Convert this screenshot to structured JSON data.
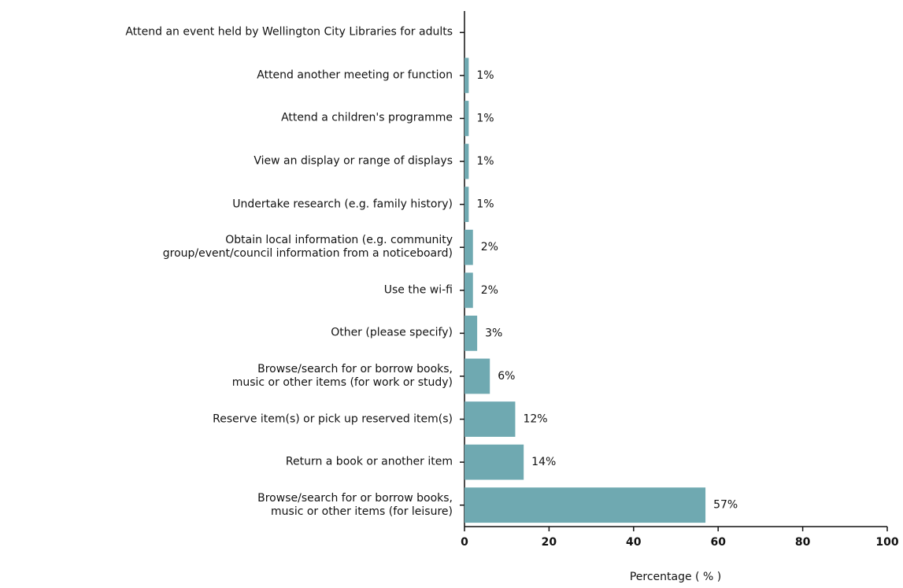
{
  "chart_data": {
    "type": "hbar",
    "categories": [
      "Attend an event held by Wellington City Libraries for adults",
      "Attend another meeting or function",
      "Attend a children's programme",
      "View an display or range of displays",
      "Undertake research (e.g. family history)",
      "Obtain local information (e.g. community\ngroup/event/council information from a noticeboard)",
      "Use the wi-fi",
      "Other (please specify)",
      "Browse/search for or borrow books,\nmusic or other items (for work or study)",
      "Reserve item(s) or pick up reserved item(s)",
      "Return a book or another item",
      "Browse/search for or borrow books,\nmusic or other items (for leisure)"
    ],
    "values": [
      0,
      1,
      1,
      1,
      1,
      2,
      2,
      3,
      6,
      12,
      14,
      57
    ],
    "value_labels": [
      null,
      "1%",
      "1%",
      "1%",
      "1%",
      "2%",
      "2%",
      "3%",
      "6%",
      "12%",
      "14%",
      "57%"
    ],
    "color": "#6fa9b1",
    "xlabel": "Percentage ( % )",
    "xlim": [
      0,
      100
    ],
    "xticks": [
      0,
      20,
      40,
      60,
      80,
      100
    ],
    "grid": false
  }
}
